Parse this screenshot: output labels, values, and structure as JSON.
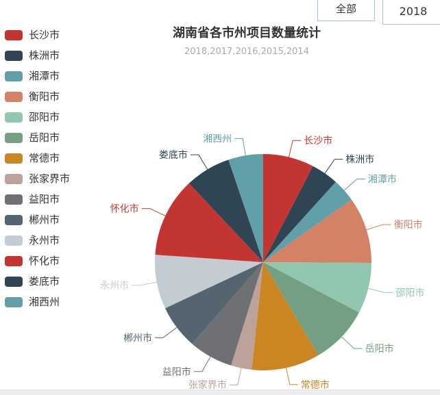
{
  "toolbar": {
    "all_label": "全部",
    "year_label": "2018"
  },
  "chart_data": {
    "type": "pie",
    "title": "湖南省各市州项目数量统计",
    "subtitle": "2018,2017,2016,2015,2014",
    "legend_position": "left",
    "start_angle_deg": 0,
    "direction": "clockwise",
    "note": "slice sizes estimated from measured arc angles; no numeric labels shown on chart",
    "slices": [
      {
        "name": "长沙市",
        "pct": 7.6,
        "angle_deg": 27.4,
        "color": "#c23531"
      },
      {
        "name": "株洲市",
        "pct": 4.1,
        "angle_deg": 14.9,
        "color": "#2f4554"
      },
      {
        "name": "湘潭市",
        "pct": 3.5,
        "angle_deg": 12.5,
        "color": "#61a0a8"
      },
      {
        "name": "衡阳市",
        "pct": 9.9,
        "angle_deg": 35.7,
        "color": "#d48265"
      },
      {
        "name": "邵阳市",
        "pct": 7.6,
        "angle_deg": 27.4,
        "color": "#91c7ae"
      },
      {
        "name": "岳阳市",
        "pct": 8.8,
        "angle_deg": 31.8,
        "color": "#749f83"
      },
      {
        "name": "常德市",
        "pct": 10.2,
        "angle_deg": 36.5,
        "color": "#ca8622"
      },
      {
        "name": "张家界市",
        "pct": 3.1,
        "angle_deg": 11.3,
        "color": "#bda29a"
      },
      {
        "name": "益阳市",
        "pct": 6.6,
        "angle_deg": 23.7,
        "color": "#6e7074"
      },
      {
        "name": "郴州市",
        "pct": 6.6,
        "angle_deg": 23.7,
        "color": "#546570"
      },
      {
        "name": "永州市",
        "pct": 8.1,
        "angle_deg": 29.1,
        "color": "#c4ccd3"
      },
      {
        "name": "怀化市",
        "pct": 11.9,
        "angle_deg": 43.0,
        "color": "#c23531"
      },
      {
        "name": "娄底市",
        "pct": 6.8,
        "angle_deg": 24.4,
        "color": "#2f4554"
      },
      {
        "name": "湘西州",
        "pct": 5.2,
        "angle_deg": 18.6,
        "color": "#61a0a8"
      }
    ]
  }
}
